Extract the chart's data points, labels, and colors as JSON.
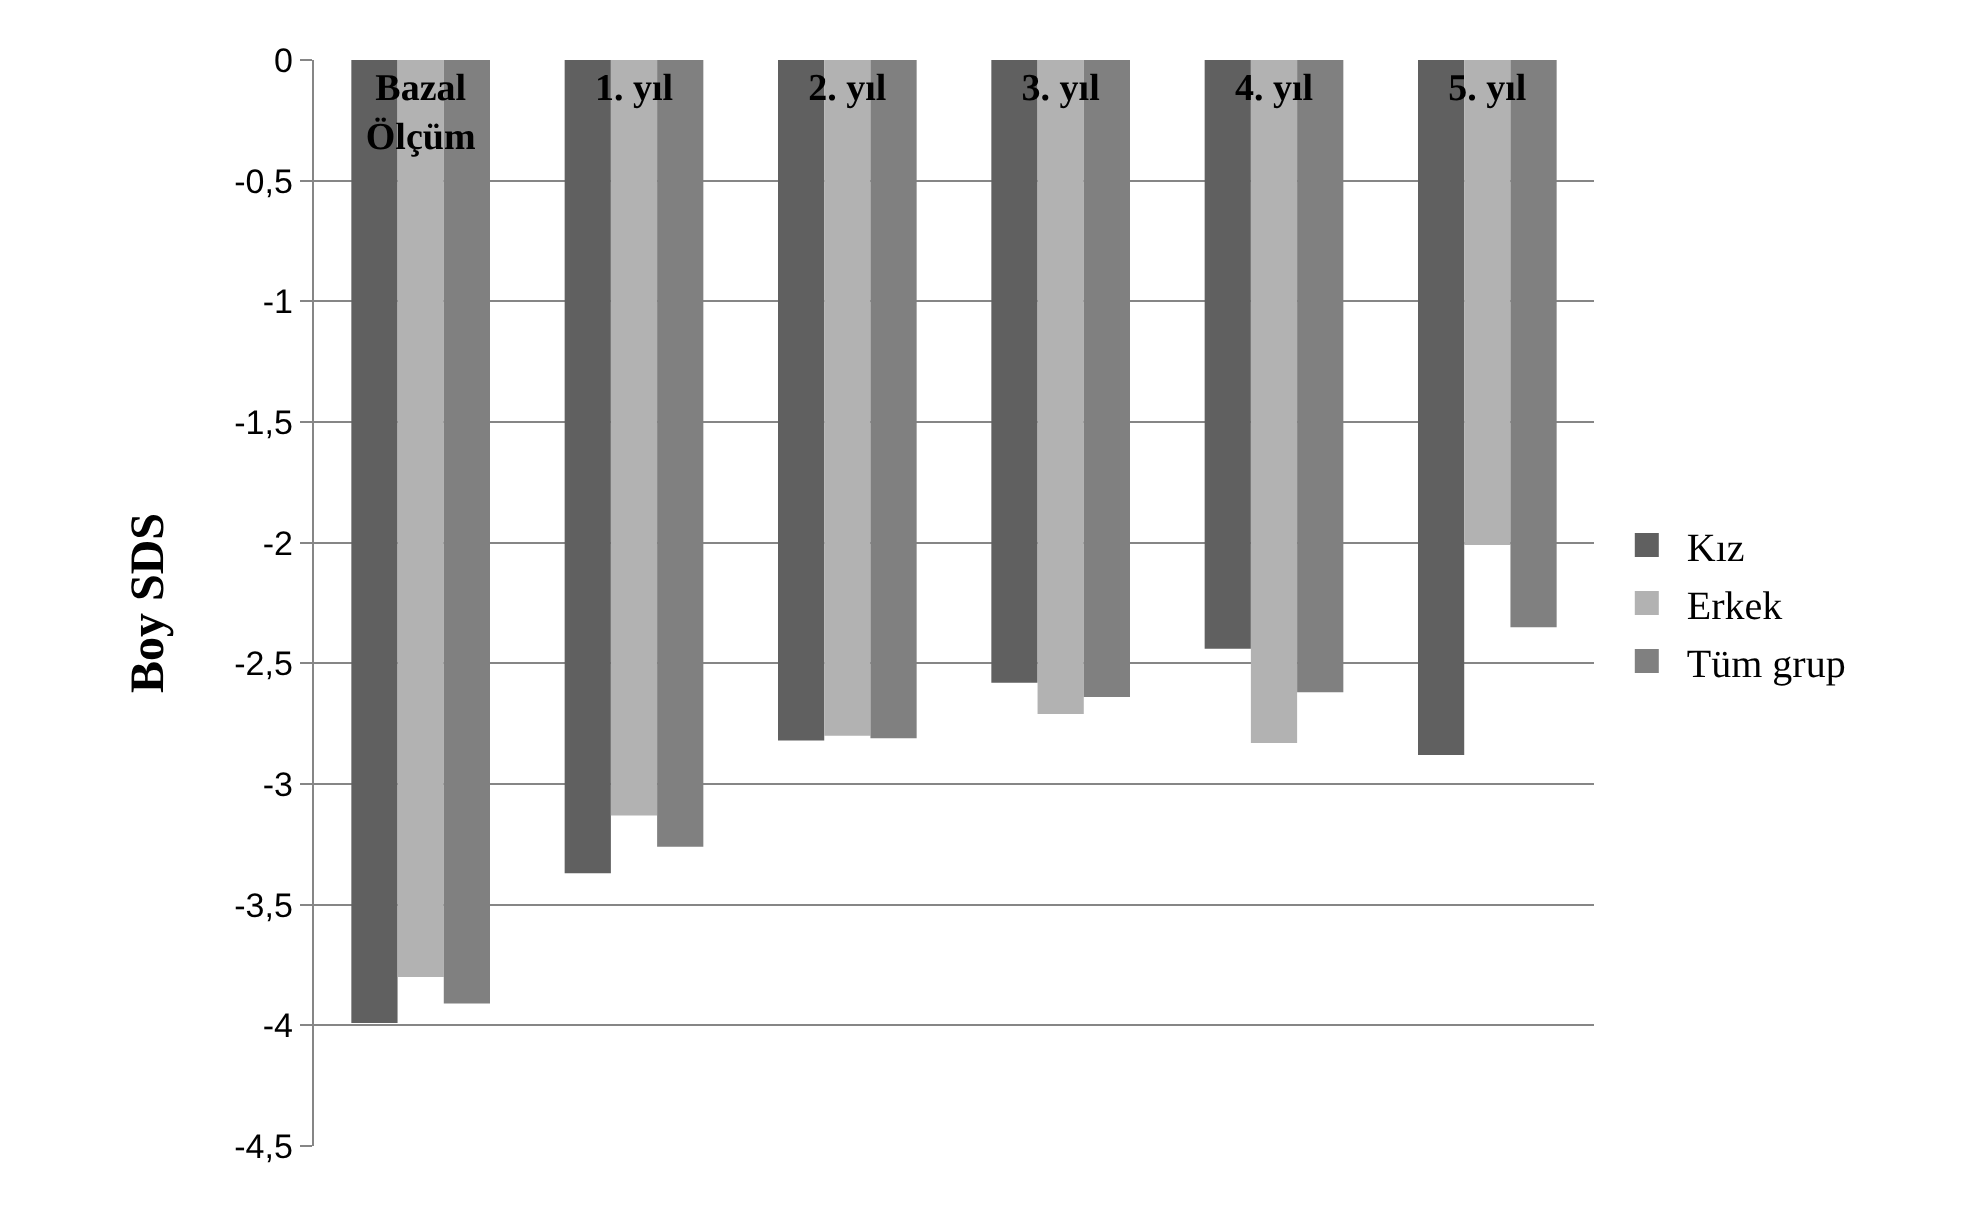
{
  "chart_data": {
    "type": "bar",
    "ylabel": "Boy SDS",
    "categories": [
      "Bazal Ölçüm",
      "1. yıl",
      "2. yıl",
      "3. yıl",
      "4. yıl",
      "5. yıl"
    ],
    "series": [
      {
        "name": "Kız",
        "color": "#606060",
        "values": [
          -3.99,
          -3.37,
          -2.82,
          -2.58,
          -2.44,
          -2.88
        ]
      },
      {
        "name": "Erkek",
        "color": "#b2b2b2",
        "values": [
          -3.8,
          -3.13,
          -2.8,
          -2.71,
          -2.83,
          -2.01
        ]
      },
      {
        "name": "Tüm grup",
        "color": "#808080",
        "values": [
          -3.91,
          -3.26,
          -2.81,
          -2.64,
          -2.62,
          -2.35
        ]
      }
    ],
    "ylim": [
      -4.5,
      0
    ],
    "yticks": [
      0,
      {
        "value": -0.5,
        "label": "-0,5"
      },
      -1,
      {
        "value": -1.5,
        "label": "-1,5"
      },
      -2,
      {
        "value": -2.5,
        "label": "-2,5"
      },
      -3,
      {
        "value": -3.5,
        "label": "-3,5"
      },
      -4,
      {
        "value": -4.5,
        "label": "-4,5"
      }
    ],
    "grid": "y",
    "legend": "right"
  }
}
